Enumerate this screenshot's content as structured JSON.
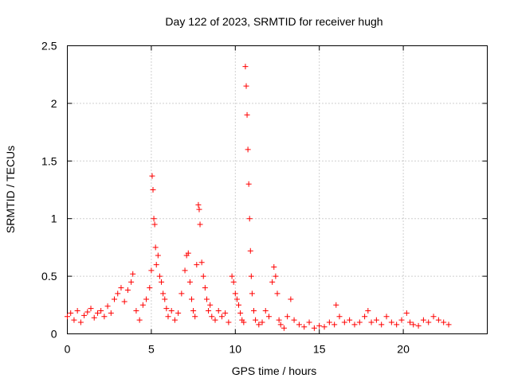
{
  "chart_data": {
    "type": "scatter",
    "title": "Day 122 of 2023, SRMTID for receiver hugh",
    "xlabel": "GPS time / hours",
    "ylabel": "SRMTID / TECUs",
    "xlim": [
      0,
      25
    ],
    "ylim": [
      0,
      2.5
    ],
    "xticks": [
      0,
      5,
      10,
      15,
      20
    ],
    "xtick_labels": [
      "0",
      "5",
      "10",
      "15",
      "20"
    ],
    "yticks": [
      0,
      0.5,
      1,
      1.5,
      2,
      2.5
    ],
    "ytick_labels": [
      "0",
      "0.5",
      "1",
      "1.5",
      "2",
      "2.5"
    ],
    "grid": true,
    "marker": "+",
    "color": "#ff0000",
    "series": [
      {
        "name": "SRMTID",
        "x": [
          0.0,
          0.2,
          0.4,
          0.6,
          0.8,
          1.0,
          1.2,
          1.4,
          1.6,
          1.8,
          2.0,
          2.2,
          2.4,
          2.6,
          2.8,
          3.0,
          3.2,
          3.4,
          3.6,
          3.8,
          3.9,
          4.1,
          4.3,
          4.5,
          4.7,
          4.9,
          5.0,
          5.05,
          5.1,
          5.15,
          5.2,
          5.25,
          5.3,
          5.4,
          5.5,
          5.6,
          5.7,
          5.8,
          5.9,
          6.0,
          6.2,
          6.4,
          6.6,
          6.8,
          7.0,
          7.1,
          7.2,
          7.3,
          7.4,
          7.5,
          7.6,
          7.7,
          7.8,
          7.85,
          7.9,
          8.0,
          8.1,
          8.2,
          8.3,
          8.4,
          8.5,
          8.6,
          8.8,
          9.0,
          9.2,
          9.4,
          9.6,
          9.8,
          9.9,
          10.0,
          10.1,
          10.2,
          10.3,
          10.4,
          10.5,
          10.6,
          10.65,
          10.7,
          10.75,
          10.8,
          10.85,
          10.9,
          10.95,
          11.0,
          11.1,
          11.2,
          11.4,
          11.6,
          11.8,
          12.0,
          12.2,
          12.3,
          12.4,
          12.5,
          12.6,
          12.7,
          12.9,
          13.1,
          13.3,
          13.5,
          13.8,
          14.1,
          14.4,
          14.7,
          15.0,
          15.3,
          15.6,
          15.9,
          16.0,
          16.2,
          16.5,
          16.8,
          17.1,
          17.4,
          17.7,
          17.9,
          18.1,
          18.4,
          18.7,
          19.0,
          19.3,
          19.6,
          19.9,
          20.2,
          20.4,
          20.6,
          20.9,
          21.2,
          21.5,
          21.8,
          22.1,
          22.4,
          22.7
        ],
        "y": [
          0.15,
          0.18,
          0.12,
          0.2,
          0.1,
          0.16,
          0.19,
          0.22,
          0.14,
          0.18,
          0.2,
          0.15,
          0.24,
          0.18,
          0.3,
          0.35,
          0.4,
          0.28,
          0.38,
          0.45,
          0.52,
          0.2,
          0.12,
          0.25,
          0.3,
          0.4,
          0.55,
          1.37,
          1.25,
          1.0,
          0.95,
          0.75,
          0.6,
          0.68,
          0.5,
          0.45,
          0.35,
          0.3,
          0.22,
          0.15,
          0.2,
          0.12,
          0.18,
          0.35,
          0.55,
          0.68,
          0.7,
          0.45,
          0.3,
          0.2,
          0.15,
          0.6,
          1.12,
          1.08,
          0.95,
          0.62,
          0.5,
          0.4,
          0.3,
          0.2,
          0.25,
          0.15,
          0.12,
          0.2,
          0.15,
          0.18,
          0.1,
          0.5,
          0.45,
          0.35,
          0.3,
          0.25,
          0.18,
          0.12,
          0.1,
          2.32,
          2.15,
          1.9,
          1.6,
          1.3,
          1.0,
          0.72,
          0.5,
          0.35,
          0.2,
          0.12,
          0.08,
          0.1,
          0.2,
          0.15,
          0.45,
          0.58,
          0.5,
          0.35,
          0.12,
          0.08,
          0.05,
          0.15,
          0.3,
          0.12,
          0.08,
          0.06,
          0.1,
          0.05,
          0.07,
          0.06,
          0.1,
          0.08,
          0.25,
          0.15,
          0.1,
          0.12,
          0.08,
          0.1,
          0.15,
          0.2,
          0.1,
          0.12,
          0.08,
          0.15,
          0.1,
          0.08,
          0.12,
          0.18,
          0.1,
          0.08,
          0.07,
          0.12,
          0.1,
          0.15,
          0.12,
          0.1,
          0.08
        ]
      }
    ]
  }
}
